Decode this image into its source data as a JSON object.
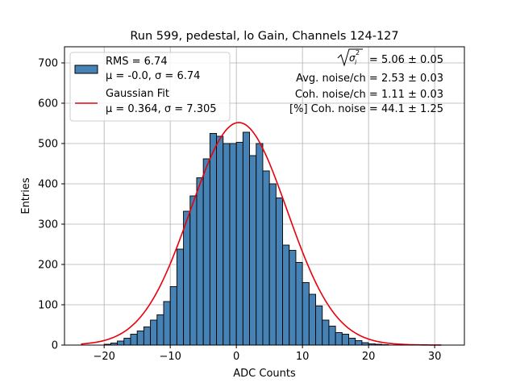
{
  "chart_data": {
    "type": "bar",
    "title": "Run 599, pedestal, lo Gain, Channels 124-127",
    "xlabel": "ADC Counts",
    "ylabel": "Entries",
    "xlim": [
      -26,
      34.5
    ],
    "ylim": [
      0,
      740
    ],
    "x_ticks": [
      -20,
      -10,
      0,
      10,
      20,
      30
    ],
    "x_tick_labels": [
      "−20",
      "−10",
      "0",
      "10",
      "20",
      "30"
    ],
    "y_ticks": [
      0,
      100,
      200,
      300,
      400,
      500,
      600,
      700
    ],
    "y_tick_labels": [
      "0",
      "100",
      "200",
      "300",
      "400",
      "500",
      "600",
      "700"
    ],
    "grid": true,
    "bin_width": 1,
    "histogram": {
      "name": "RMS = 6.74",
      "color": "#4682b4",
      "edgecolor": "#000000",
      "bin_starts": [
        -20,
        -19,
        -18,
        -17,
        -16,
        -15,
        -14,
        -13,
        -12,
        -11,
        -10,
        -9,
        -8,
        -7,
        -6,
        -5,
        -4,
        -3,
        -2,
        -1,
        0,
        1,
        2,
        3,
        4,
        5,
        6,
        7,
        8,
        9,
        10,
        11,
        12,
        13,
        14,
        15,
        16,
        17,
        18,
        19,
        20,
        21,
        22
      ],
      "values": [
        2,
        5,
        10,
        17,
        27,
        35,
        45,
        62,
        75,
        108,
        145,
        238,
        332,
        370,
        415,
        462,
        525,
        518,
        500,
        500,
        503,
        528,
        470,
        500,
        432,
        400,
        365,
        248,
        235,
        205,
        155,
        126,
        97,
        62,
        47,
        31,
        27,
        17,
        11,
        6,
        3,
        2,
        1
      ]
    },
    "fit": {
      "name": "Gaussian Fit",
      "color": "#e8000b",
      "mu": 0.364,
      "sigma": 7.305,
      "amplitude": 552,
      "x_range": [
        -23.5,
        31
      ]
    },
    "legend": {
      "position": "top-left",
      "entries": [
        {
          "line1": "RMS = 6.74",
          "line2": "μ = -0.0, σ = 6.74"
        },
        {
          "line1": "Gaussian Fit",
          "line2": "μ = 0.364, σ = 7.305"
        }
      ]
    },
    "annotations": {
      "total_noise": "= 5.06 ± 0.05",
      "avg_noise": "Avg. noise/ch = 2.53 ± 0.03",
      "coh_noise": "Coh. noise/ch = 1.11 ± 0.03",
      "coh_percent": "[%] Coh. noise = 44.1 ± 1.25"
    }
  }
}
